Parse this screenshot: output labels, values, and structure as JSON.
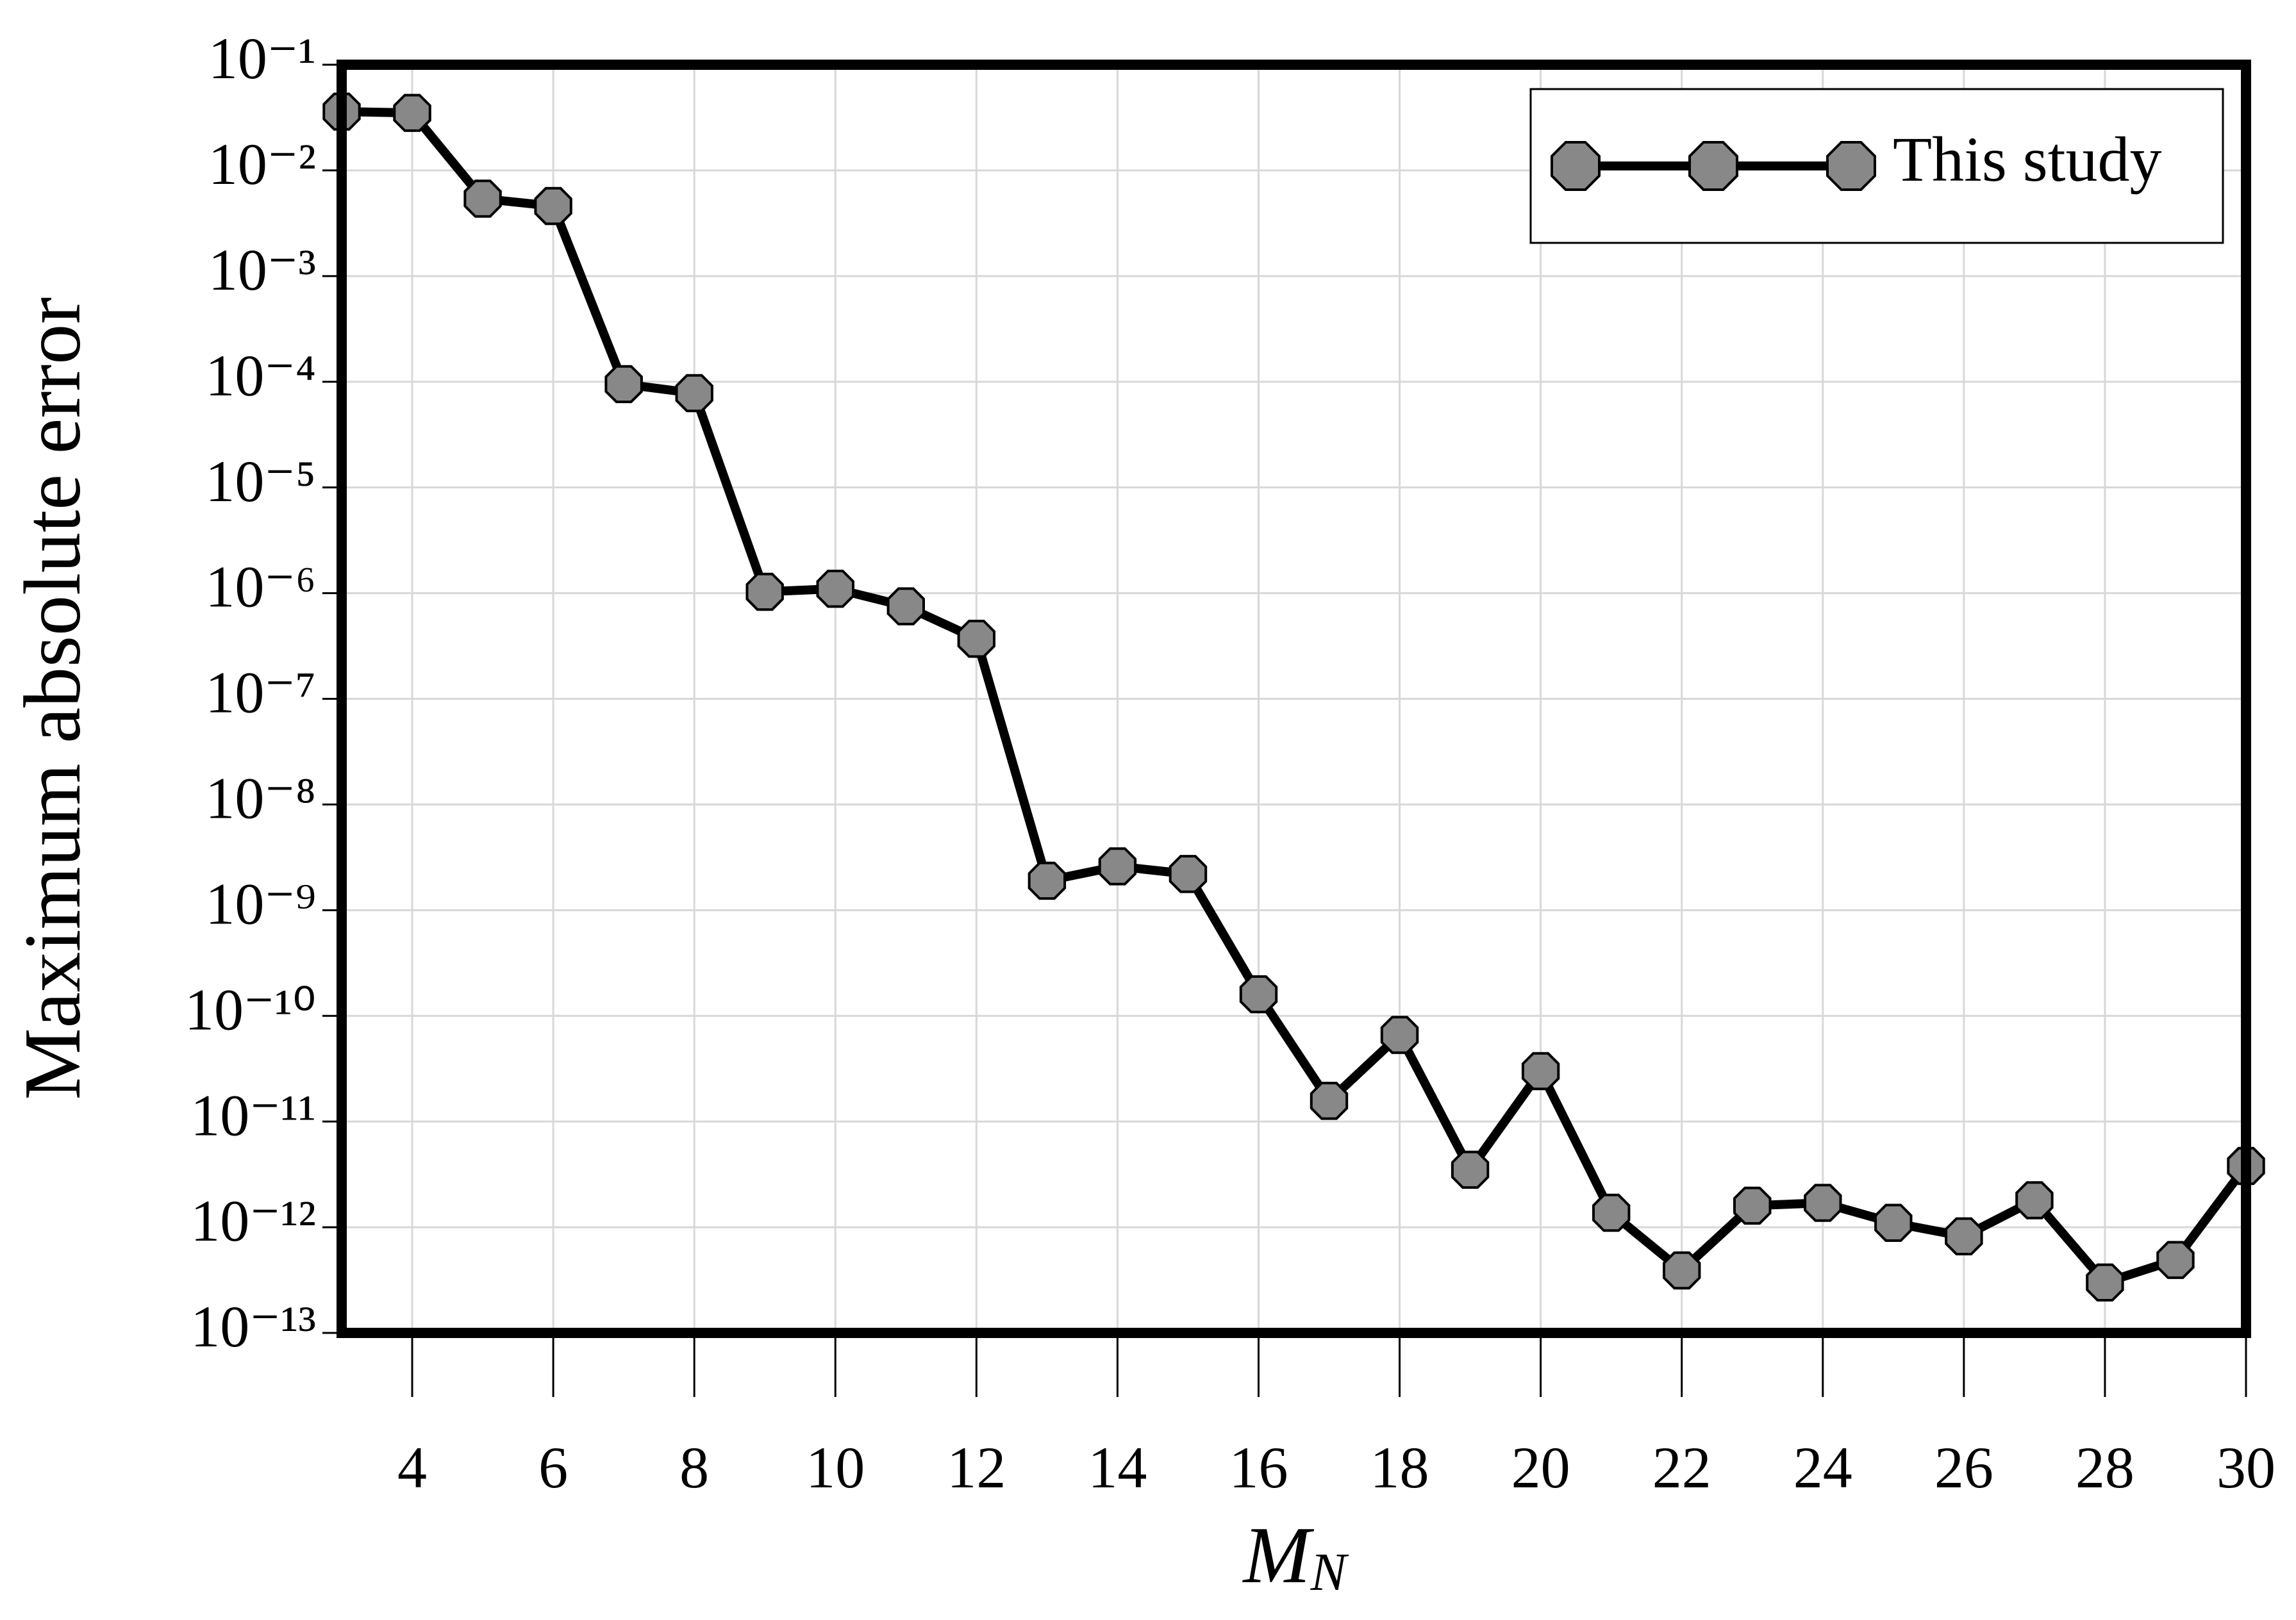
{
  "chart_data": {
    "type": "line",
    "ylabel": "Maximum absolute error",
    "xlabel": "M",
    "xlabel_subscript": "N",
    "x": [
      3,
      4,
      5,
      6,
      7,
      8,
      9,
      10,
      11,
      12,
      13,
      14,
      15,
      16,
      17,
      18,
      19,
      20,
      21,
      22,
      23,
      24,
      25,
      26,
      27,
      28,
      29,
      30
    ],
    "series": [
      {
        "name": "This study",
        "color": "#888888",
        "values": [
          0.036,
          0.035,
          0.0054,
          0.0046,
          9.5e-05,
          7.8e-05,
          1.03e-06,
          1.1e-06,
          7.5e-07,
          3.7e-07,
          1.9e-09,
          2.6e-09,
          2.2e-09,
          1.6e-10,
          1.57e-11,
          6.6e-11,
          3.5e-12,
          3e-11,
          1.37e-12,
          3.9e-13,
          1.6e-12,
          1.7e-12,
          1.1e-12,
          8.2e-13,
          1.8e-12,
          3e-13,
          4.9e-13,
          3.8e-12
        ]
      }
    ],
    "xlim": [
      3,
      30
    ],
    "xticks": [
      4,
      6,
      8,
      10,
      12,
      14,
      16,
      18,
      20,
      22,
      24,
      26,
      28,
      30
    ],
    "ylim": [
      1e-13,
      0.1
    ],
    "yscale": "log",
    "yticks": [
      {
        "value": 0.1,
        "label": "10⁻¹"
      },
      {
        "value": 0.01,
        "label": "10⁻²"
      },
      {
        "value": 0.001,
        "label": "10⁻³"
      },
      {
        "value": 0.0001,
        "label": "10⁻⁴"
      },
      {
        "value": 1e-05,
        "label": "10⁻⁵"
      },
      {
        "value": 1e-06,
        "label": "10⁻⁶"
      },
      {
        "value": 1e-07,
        "label": "10⁻⁷"
      },
      {
        "value": 1e-08,
        "label": "10⁻⁸"
      },
      {
        "value": 1e-09,
        "label": "10⁻⁹"
      },
      {
        "value": 1e-10,
        "label": "10⁻¹⁰"
      },
      {
        "value": 1e-11,
        "label": "10⁻¹¹"
      },
      {
        "value": 1e-12,
        "label": "10⁻¹²"
      },
      {
        "value": 1e-13,
        "label": "10⁻¹³"
      }
    ],
    "grid": true,
    "legend": "upper right"
  }
}
